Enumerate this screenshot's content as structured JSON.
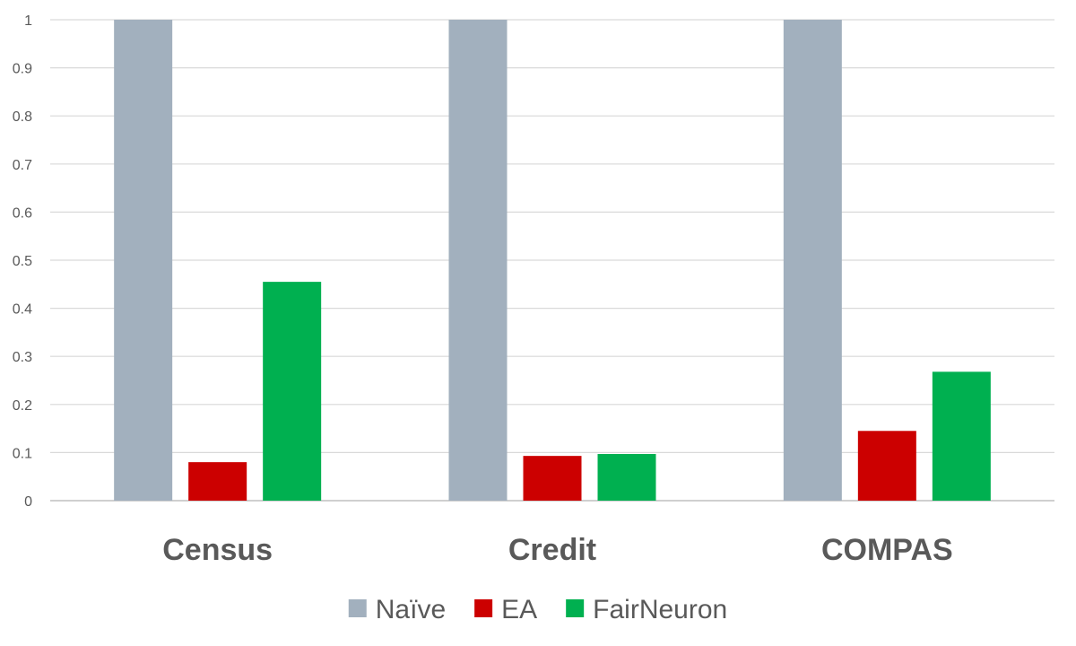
{
  "chart_data": {
    "type": "bar",
    "categories": [
      "Census",
      "Credit",
      "COMPAS"
    ],
    "series": [
      {
        "name": "Naïve",
        "color": "#a2b0be",
        "values": [
          1,
          1,
          1
        ]
      },
      {
        "name": "EA",
        "color": "#cc0000",
        "values": [
          0.08,
          0.093,
          0.145
        ]
      },
      {
        "name": "FairNeuron",
        "color": "#00b050",
        "values": [
          0.455,
          0.097,
          0.268
        ]
      }
    ],
    "ylim": [
      0,
      1
    ],
    "yticks": [
      "0",
      "0.1",
      "0.2",
      "0.3",
      "0.4",
      "0.5",
      "0.6",
      "0.7",
      "0.8",
      "0.9",
      "1"
    ],
    "title": "",
    "xlabel": "",
    "ylabel": "",
    "grid": true,
    "legend_position": "bottom"
  }
}
